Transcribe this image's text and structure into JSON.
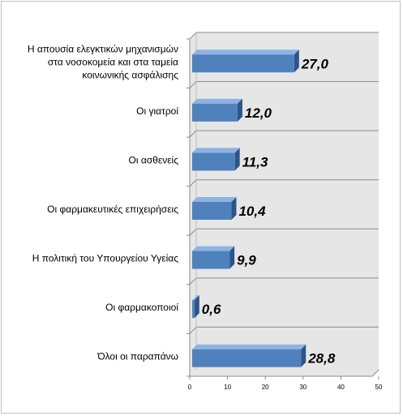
{
  "chart_data": {
    "type": "bar",
    "orientation": "horizontal",
    "categories": [
      [
        "Η απουσία ελεγκτικών μηχανισμών",
        "στα νοσοκομεία και στα ταμεία",
        "κοινωνικής ασφάλισης"
      ],
      [
        "Οι γιατροί"
      ],
      [
        "Οι ασθενείς"
      ],
      [
        "Οι φαρμακευτικές επιχειρήσεις"
      ],
      [
        "Η πολιτική του Υπουργείου Υγείας"
      ],
      [
        "Οι φαρμακοποιοί"
      ],
      [
        "Όλοι οι παραπάνω"
      ]
    ],
    "values": [
      27.0,
      12.0,
      11.3,
      10.4,
      9.9,
      0.6,
      28.8
    ],
    "data_labels": [
      "27,0",
      "12,0",
      "11,3",
      "10,4",
      "9,9",
      "0,6",
      "28,8"
    ],
    "xlim": [
      0,
      50
    ],
    "x_ticks": [
      "0",
      "10",
      "20",
      "30",
      "40",
      "50"
    ],
    "grid": true,
    "bar_color": "#4f81bd",
    "bar_dark_color": "#2c5587",
    "bar_light_color": "#8db3e2",
    "wall_color": "#e6e6e6",
    "grid_color": "#8c8c8c"
  }
}
